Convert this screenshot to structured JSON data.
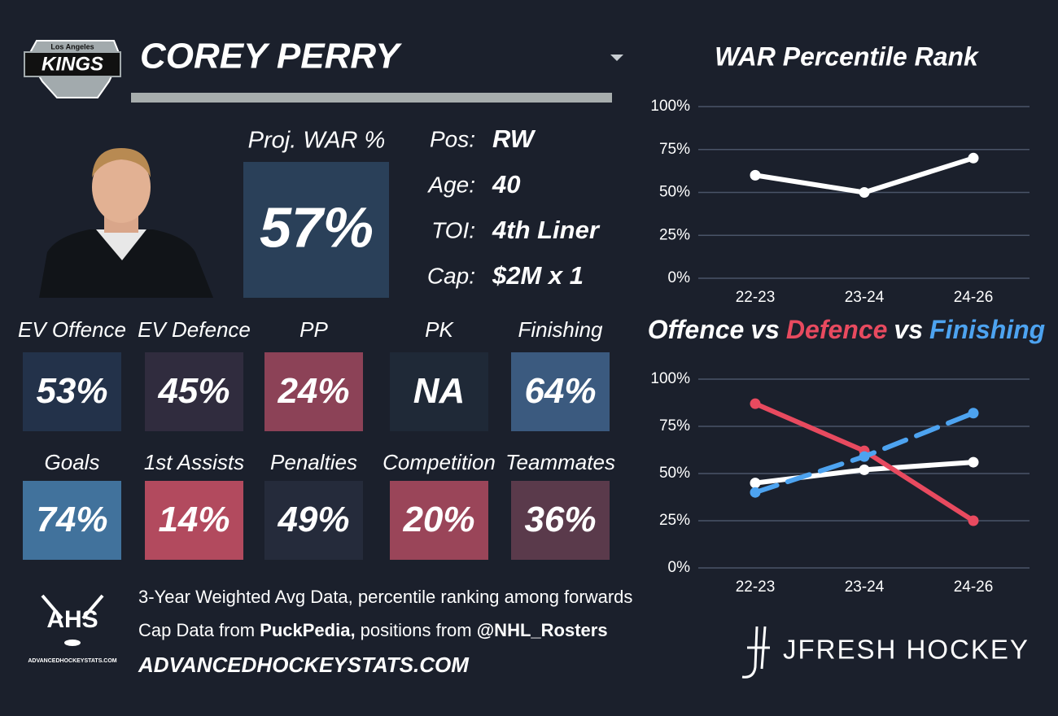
{
  "logo": {
    "top": "Los Angeles",
    "main": "KINGS"
  },
  "player": {
    "name": "COREY PERRY"
  },
  "projection": {
    "label": "Proj. WAR %",
    "value": "57%",
    "color": "#2a4059"
  },
  "info": [
    {
      "label": "Pos:",
      "value": "RW"
    },
    {
      "label": "Age:",
      "value": "40"
    },
    {
      "label": "TOI:",
      "value": "4th Liner"
    },
    {
      "label": "Cap:",
      "value": "$2M x 1"
    }
  ],
  "cards": [
    {
      "label": "EV Offence",
      "value": "53%",
      "color": "#23324a"
    },
    {
      "label": "EV Defence",
      "value": "45%",
      "color": "#302c3e"
    },
    {
      "label": "PP",
      "value": "24%",
      "color": "#8c4257"
    },
    {
      "label": "PK",
      "value": "NA",
      "color": "#1f2937"
    },
    {
      "label": "Finishing",
      "value": "64%",
      "color": "#3b5a7f"
    },
    {
      "label": "Goals",
      "value": "74%",
      "color": "#41729c"
    },
    {
      "label": "1st Assists",
      "value": "14%",
      "color": "#b24a5e"
    },
    {
      "label": "Penalties",
      "value": "49%",
      "color": "#252b3b"
    },
    {
      "label": "Competition",
      "value": "20%",
      "color": "#9a4559"
    },
    {
      "label": "Teammates",
      "value": "36%",
      "color": "#5a3a4b"
    }
  ],
  "footer": {
    "ahs_logo": "AHS",
    "ahs_url": "ADVANCEDHOCKEYSTATS.COM",
    "note": "3-Year Weighted Avg Data, percentile ranking among forwards",
    "cap_line": [
      {
        "text": "Cap Data from ",
        "bold": false
      },
      {
        "text": "PuckPedia,",
        "bold": true
      },
      {
        "text": " positions from ",
        "bold": false
      },
      {
        "text": "@NHL_Rosters",
        "bold": true
      }
    ],
    "site": "ADVANCEDHOCKEYSTATS.COM",
    "brand": "JFRESH HOCKEY"
  },
  "chart_data": [
    {
      "type": "line",
      "title": "WAR Percentile Rank",
      "categories": [
        "22-23",
        "23-24",
        "24-26"
      ],
      "values": [
        60,
        50,
        70
      ],
      "color": "#ffffff",
      "ylim": [
        0,
        100
      ],
      "yticks": [
        {
          "value": 0,
          "label": "0%"
        },
        {
          "value": 25,
          "label": "25%"
        },
        {
          "value": 50,
          "label": "50%"
        },
        {
          "value": 75,
          "label": "75%"
        },
        {
          "value": 100,
          "label": "100%"
        }
      ],
      "grid": true
    },
    {
      "type": "line",
      "title_joiner": "vs",
      "categories": [
        "22-23",
        "23-24",
        "24-26"
      ],
      "series": [
        {
          "name": "Offence",
          "color": "#ffffff",
          "values": [
            45,
            52,
            56
          ]
        },
        {
          "name": "Defence",
          "color": "#e84a5f",
          "values": [
            87,
            62,
            25
          ]
        },
        {
          "name": "Finishing",
          "color": "#4da3f0",
          "values": [
            40,
            59,
            82
          ],
          "dashed": true
        }
      ],
      "ylim": [
        0,
        100
      ],
      "yticks": [
        {
          "value": 0,
          "label": "0%"
        },
        {
          "value": 25,
          "label": "25%"
        },
        {
          "value": 50,
          "label": "50%"
        },
        {
          "value": 75,
          "label": "75%"
        },
        {
          "value": 100,
          "label": "100%"
        }
      ],
      "grid": true
    }
  ]
}
